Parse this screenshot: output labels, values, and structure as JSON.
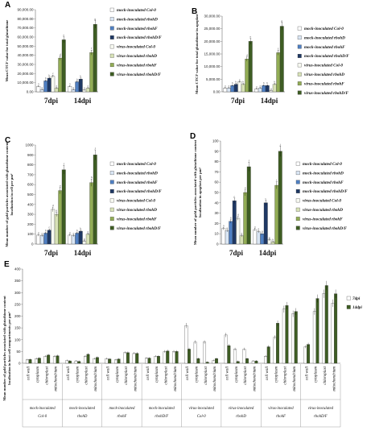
{
  "colors": {
    "mock_col0": "#ffffff",
    "mock_rbohD": "#dae6f4",
    "mock_rbohF": "#4f7fc2",
    "mock_rbohDF": "#1f3864",
    "virus_col0": "#f7f9f1",
    "virus_rbohD": "#d8e2b7",
    "virus_rbohF": "#92ad55",
    "virus_rbohDF": "#3e5d23",
    "e_7dpi": "#ffffff",
    "e_14dpi": "#3e5d23"
  },
  "legend_labels": [
    "mock-inoculated Col-0",
    "mock-inoculated rbohD",
    "mock-inoculated rbohF",
    "mock-inoculated rbohD/F",
    "virus-inoculated Col-0",
    "virus-inoculated rbohD",
    "virus-inoculated rbohF",
    "virus-inoculated rbohD/F"
  ],
  "chart_data": [
    {
      "panel": "A",
      "type": "bar",
      "ylabel": "Mean CTCF value for total glutathione",
      "ylim": [
        0,
        90000
      ],
      "yticks": [
        "0.00",
        "10,000.00",
        "20,000.00",
        "30,000.00",
        "40,000.00",
        "50,000.00",
        "60,000.00",
        "70,000.00",
        "80,000.00",
        "90,000.00"
      ],
      "categories": [
        "7dpi",
        "14dpi"
      ],
      "series": [
        {
          "name": "mock-inoculated Col-0",
          "values": [
            6000,
            6000
          ]
        },
        {
          "name": "mock-inoculated rbohD",
          "values": [
            2500,
            2500
          ]
        },
        {
          "name": "mock-inoculated rbohF",
          "values": [
            12000,
            11000
          ]
        },
        {
          "name": "mock-inoculated rbohD/F",
          "values": [
            15000,
            14000
          ]
        },
        {
          "name": "virus-inoculated Col-0",
          "values": [
            17000,
            2000
          ]
        },
        {
          "name": "virus-inoculated rbohD",
          "values": [
            4000,
            4000
          ]
        },
        {
          "name": "virus-inoculated rbohF",
          "values": [
            37000,
            43000
          ]
        },
        {
          "name": "virus-inoculated rbohD/F",
          "values": [
            57000,
            74000
          ]
        }
      ],
      "sig_labels": [
        [
          "a",
          "a",
          "b",
          "b",
          "c",
          "a",
          "d",
          "e"
        ],
        [
          "a",
          "a",
          "b",
          "b",
          "a",
          "a",
          "f",
          "g"
        ]
      ]
    },
    {
      "panel": "B",
      "type": "bar",
      "ylabel": "Mean CTCF value for total glutathione in apoplast",
      "ylim": [
        0,
        30000
      ],
      "yticks": [
        "0.00",
        "5,000.00",
        "10,000.00",
        "15,000.00",
        "20,000.00",
        "25,000.00",
        "30,000.00"
      ],
      "categories": [
        "7dpi",
        "14dpi"
      ],
      "series": [
        {
          "name": "mock-inoculated Col-0",
          "values": [
            1500,
            1200
          ]
        },
        {
          "name": "mock-inoculated rbohD",
          "values": [
            1500,
            1500
          ]
        },
        {
          "name": "mock-inoculated rbohF",
          "values": [
            2500,
            2500
          ]
        },
        {
          "name": "mock-inoculated rbohD/F",
          "values": [
            3000,
            2500
          ]
        },
        {
          "name": "virus-inoculated Col-0",
          "values": [
            4000,
            500
          ]
        },
        {
          "name": "virus-inoculated rbohD",
          "values": [
            3000,
            3000
          ]
        },
        {
          "name": "virus-inoculated rbohF",
          "values": [
            13000,
            15500
          ]
        },
        {
          "name": "virus-inoculated rbohD/F",
          "values": [
            20000,
            26000
          ]
        }
      ],
      "sig_labels": [
        [
          "a",
          "a",
          "b",
          "b",
          "c",
          "b",
          "d",
          "e"
        ],
        [
          "a",
          "a",
          "b",
          "b",
          "a",
          "b",
          "f",
          "g"
        ]
      ]
    },
    {
      "panel": "C",
      "type": "bar",
      "ylabel": "Mean number of gold particles associated with glutathione content localization in cell per μm²",
      "ylim": [
        0,
        1000
      ],
      "yticks": [
        "0",
        "100",
        "200",
        "300",
        "400",
        "500",
        "600",
        "700",
        "800",
        "900",
        "1000"
      ],
      "categories": [
        "7dpi",
        "14dpi"
      ],
      "series": [
        {
          "name": "mock-inoculated Col-0",
          "values": [
            90,
            90
          ]
        },
        {
          "name": "mock-inoculated rbohD",
          "values": [
            85,
            85
          ]
        },
        {
          "name": "mock-inoculated rbohF",
          "values": [
            110,
            110
          ]
        },
        {
          "name": "mock-inoculated rbohD/F",
          "values": [
            140,
            130
          ]
        },
        {
          "name": "virus-inoculated Col-0",
          "values": [
            350,
            30
          ]
        },
        {
          "name": "virus-inoculated rbohD",
          "values": [
            300,
            100
          ]
        },
        {
          "name": "virus-inoculated rbohF",
          "values": [
            540,
            620
          ]
        },
        {
          "name": "virus-inoculated rbohD/F",
          "values": [
            750,
            900
          ]
        }
      ],
      "sig_labels": [
        [
          "a",
          "a",
          "b",
          "c",
          "d",
          "d",
          "e",
          "f"
        ],
        [
          "a",
          "a",
          "b",
          "b",
          "g",
          "a",
          "h",
          "i"
        ]
      ]
    },
    {
      "panel": "D",
      "type": "bar",
      "ylabel": "Mean number of gold particles associated with glutathione content localization in apoplast per μm²",
      "ylim": [
        0,
        100
      ],
      "yticks": [
        "0",
        "10",
        "20",
        "30",
        "40",
        "50",
        "60",
        "70",
        "80",
        "90",
        "100"
      ],
      "categories": [
        "7dpi",
        "14dpi"
      ],
      "series": [
        {
          "name": "mock-inoculated Col-0",
          "values": [
            15,
            14
          ]
        },
        {
          "name": "mock-inoculated rbohD",
          "values": [
            13,
            12
          ]
        },
        {
          "name": "mock-inoculated rbohF",
          "values": [
            22,
            10
          ]
        },
        {
          "name": "mock-inoculated rbohD/F",
          "values": [
            42,
            40
          ]
        },
        {
          "name": "virus-inoculated Col-0",
          "values": [
            25,
            4
          ]
        },
        {
          "name": "virus-inoculated rbohD",
          "values": [
            8,
            2
          ]
        },
        {
          "name": "virus-inoculated rbohF",
          "values": [
            50,
            57
          ]
        },
        {
          "name": "virus-inoculated rbohD/F",
          "values": [
            75,
            90
          ]
        }
      ],
      "sig_labels": [
        [
          "a",
          "a",
          "b",
          "c",
          "d",
          "a",
          "e",
          "f"
        ],
        [
          "a",
          "a",
          "a",
          "c",
          "g",
          "h",
          "i",
          "j"
        ]
      ]
    },
    {
      "panel": "E",
      "type": "bar",
      "ylabel": "Mean number of gold particles associated with glutathione content localization in host cell compartments per μm²",
      "ylim": [
        0,
        400
      ],
      "yticks": [
        "0",
        "50",
        "100",
        "150",
        "200",
        "250",
        "300",
        "350",
        "400"
      ],
      "series_names": [
        "7dpi",
        "14dpi"
      ],
      "compartments": [
        "cell wall",
        "cytoplasm",
        "chloroplast",
        "mitochondrium"
      ],
      "groups": [
        {
          "label": "mock-inoculated Col-0",
          "values7": [
            15,
            20,
            30,
            30
          ],
          "values14": [
            16,
            22,
            35,
            32
          ]
        },
        {
          "label": "mock-inoculated rbohD",
          "values7": [
            12,
            10,
            30,
            20
          ],
          "values14": [
            10,
            8,
            38,
            25
          ]
        },
        {
          "label": "mock-inoculated rbohF",
          "values7": [
            20,
            15,
            45,
            42
          ],
          "values14": [
            18,
            18,
            45,
            42
          ]
        },
        {
          "label": "mock-inoculated rbohD/F",
          "values7": [
            22,
            30,
            50,
            50
          ],
          "values14": [
            22,
            30,
            52,
            50
          ]
        },
        {
          "label": "virus-inoculated Col-0",
          "values7": [
            160,
            90,
            90,
            12
          ],
          "values14": [
            60,
            20,
            5,
            20
          ]
        },
        {
          "label": "virus-inoculated rbohD",
          "values7": [
            120,
            60,
            60,
            10
          ],
          "values14": [
            75,
            8,
            20,
            10
          ]
        },
        {
          "label": "virus-inoculated rbohF",
          "values7": [
            30,
            110,
            230,
            210
          ],
          "values14": [
            70,
            170,
            245,
            220
          ]
        },
        {
          "label": "virus-inoculated rbohD/F",
          "values7": [
            70,
            220,
            295,
            255
          ],
          "values14": [
            80,
            275,
            330,
            295
          ]
        }
      ]
    }
  ]
}
